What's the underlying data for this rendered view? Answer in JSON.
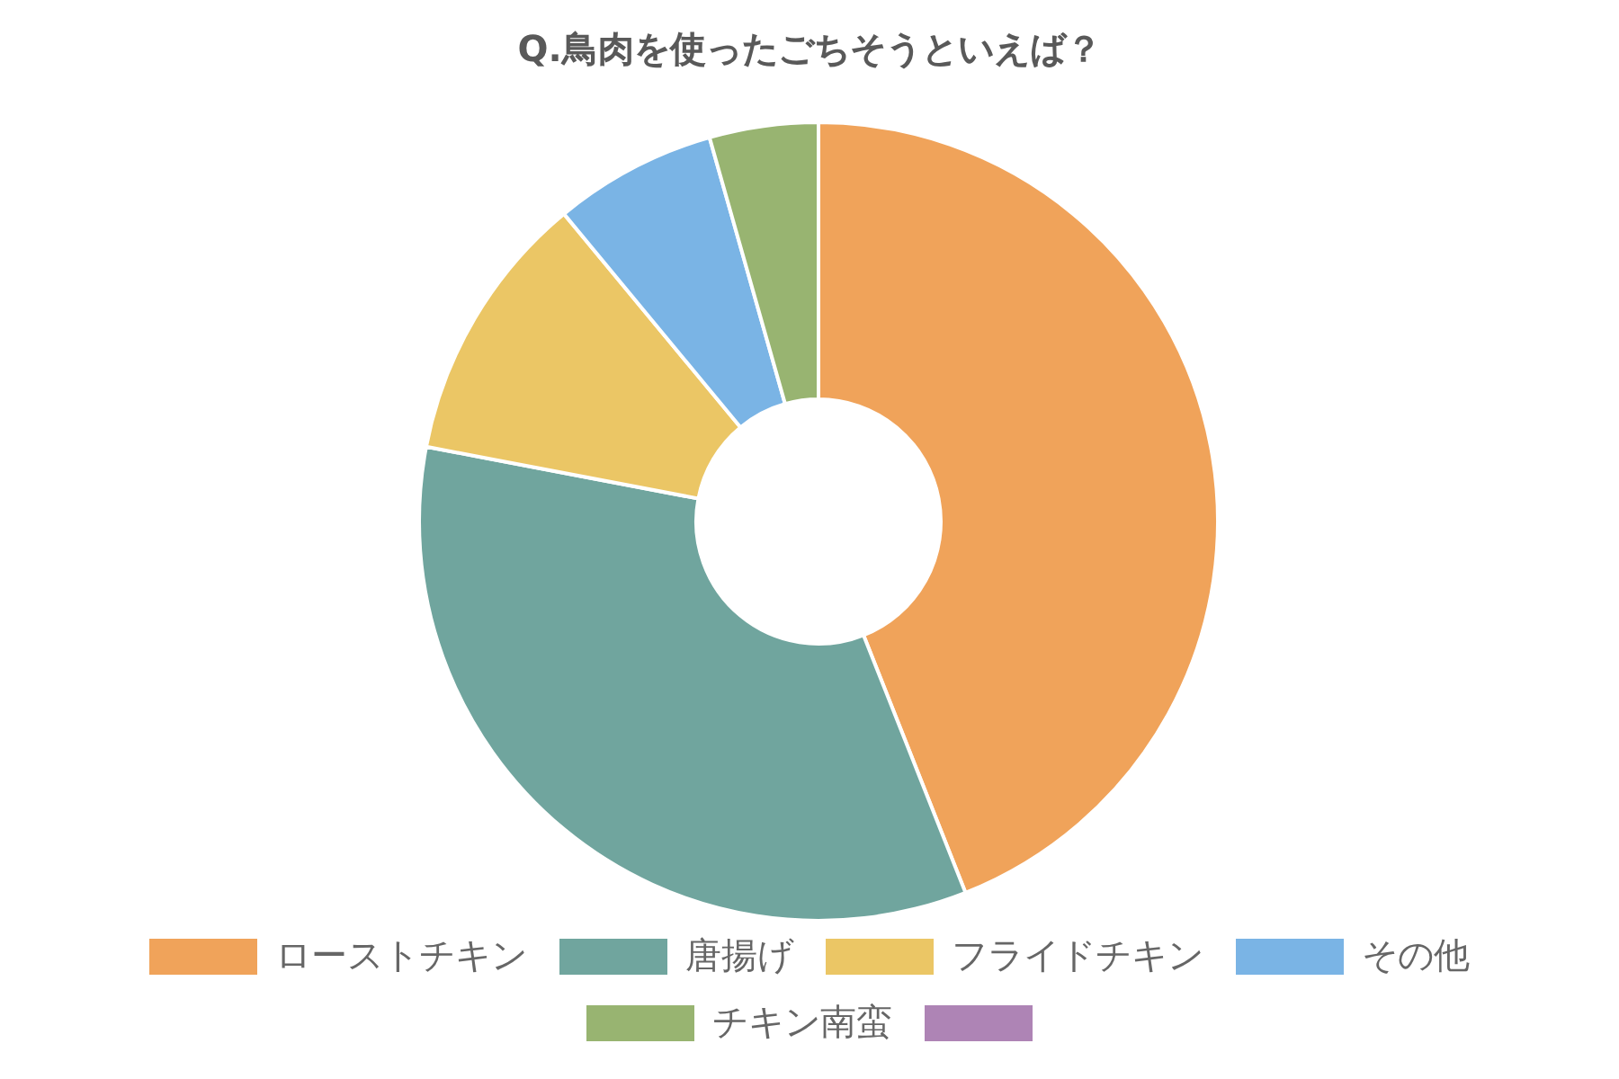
{
  "chart_data": {
    "type": "donut",
    "title": "Q.鳥肉を使ったごちそうといえば？",
    "categories": [
      "ローストチキン",
      "唐揚げ",
      "フライドチキン",
      "その他",
      "チキン南蛮",
      null
    ],
    "values": [
      44,
      34,
      11,
      6.6,
      4.4,
      0
    ],
    "colors": [
      "#f0a35a",
      "#70a59e",
      "#ebc665",
      "#7ab4e5",
      "#98b471",
      "#ae84b5"
    ],
    "legend": "bottom"
  }
}
